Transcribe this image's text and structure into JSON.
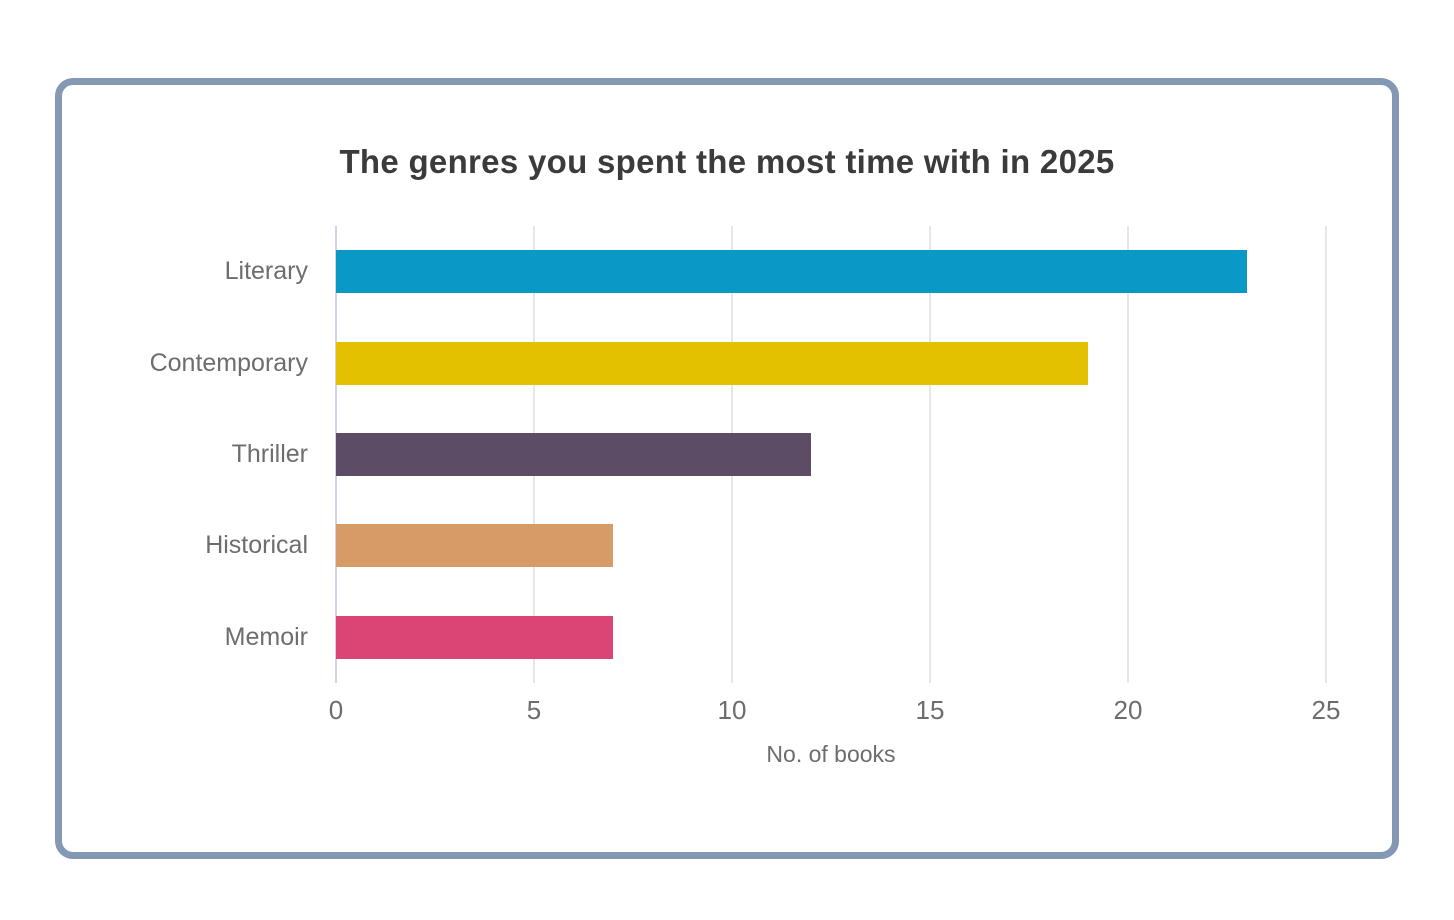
{
  "page": {
    "background": "#ffffff"
  },
  "card": {
    "background": "#ffffff",
    "border_color": "#8298b3"
  },
  "chart_data": {
    "type": "bar",
    "orientation": "horizontal",
    "title": "The genres you spent the most time with in 2025",
    "xlabel": "No. of books",
    "categories": [
      "Literary",
      "Contemporary",
      "Thriller",
      "Historical",
      "Memoir"
    ],
    "values": [
      23,
      19,
      12,
      7,
      7
    ],
    "bar_colors": [
      "#0a99c7",
      "#e3c000",
      "#5d4c66",
      "#d79b68",
      "#da4576"
    ],
    "xlim": [
      0,
      25
    ],
    "xticks": [
      0,
      5,
      10,
      15,
      20,
      25
    ],
    "grid": "vertical-gridlines",
    "legend": "none"
  },
  "colors": {
    "title_text": "#3b3b3b",
    "axis_text": "#6d6d6d",
    "gridline": "#e7e7e7",
    "axis_line": "#cdd5e4",
    "card_border": "#8298b3"
  }
}
